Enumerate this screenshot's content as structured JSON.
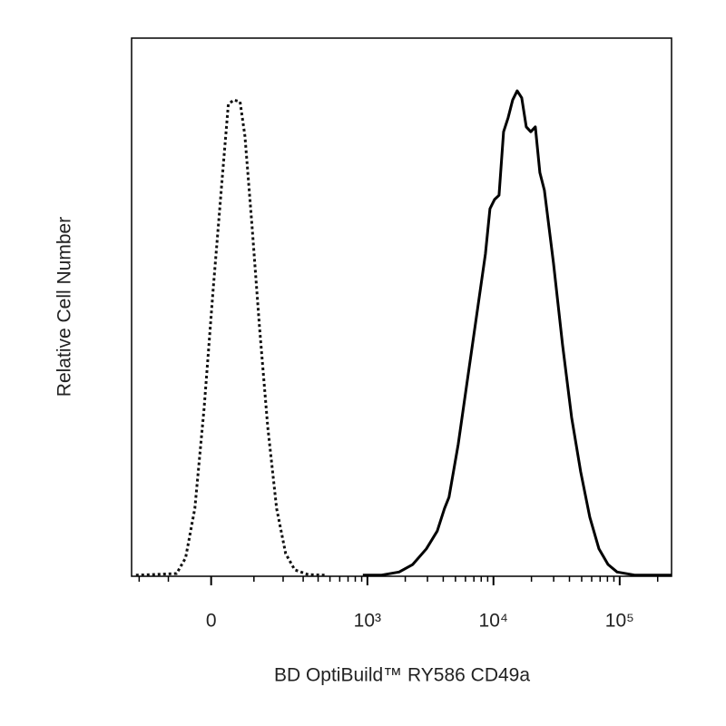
{
  "chart_data": {
    "type": "line",
    "xscale": "biexponential",
    "xlabel": "BD OptiBuild™ RY586 CD49a",
    "ylabel": "Relative Cell Number",
    "xlim": [
      -234,
      257600
    ],
    "ylim": [
      0,
      100
    ],
    "xticks": [
      0,
      {
        "value": 1000,
        "label": "10³"
      },
      {
        "value": 10000,
        "label": "10⁴"
      },
      {
        "value": 100000,
        "label": "10⁵"
      }
    ],
    "xminorticks": [
      -200,
      -100,
      100,
      200,
      300,
      400,
      500,
      600,
      700,
      800,
      900,
      2000,
      3000,
      4000,
      5000,
      6000,
      7000,
      8000,
      9000,
      20000,
      30000,
      40000,
      50000,
      60000,
      70000,
      80000,
      90000,
      200000
    ],
    "series": [
      {
        "color": "#111111",
        "dash": "dotted",
        "x": [
          -214,
          -78,
          -56,
          -35,
          -15,
          4,
          23,
          37,
          49,
          64,
          76,
          95,
          116,
          142,
          174,
          211,
          254,
          331,
          469
        ],
        "values": [
          0.2,
          0.5,
          3.4,
          12.6,
          31.2,
          53.1,
          73.4,
          87.7,
          88.5,
          88.2,
          81.8,
          64.9,
          46.4,
          27.8,
          12.6,
          4.2,
          1.2,
          0.3,
          0.2
        ]
      },
      {
        "color": "#000000",
        "dash": "solid",
        "x": [
          919,
          1282,
          1788,
          2293,
          2939,
          3587,
          4096,
          4449,
          5253,
          6199,
          7315,
          8634,
          9380,
          10190,
          11070,
          12020,
          13060,
          14190,
          15420,
          16750,
          18180,
          19750,
          21460,
          23310,
          25330,
          29900,
          35290,
          41660,
          49140,
          58000,
          68490,
          80820,
          95380,
          132800,
          257600
        ],
        "values": [
          0.2,
          0.2,
          0.8,
          2.2,
          5.1,
          8.4,
          12.6,
          14.7,
          24.5,
          36.3,
          48.1,
          59.9,
          68.3,
          70.0,
          70.8,
          82.6,
          85.2,
          88.5,
          90.2,
          88.9,
          83.5,
          82.6,
          83.5,
          75.0,
          71.7,
          58.2,
          43.0,
          29.5,
          19.4,
          11.0,
          5.1,
          2.2,
          0.8,
          0.2,
          0.2
        ]
      }
    ]
  }
}
